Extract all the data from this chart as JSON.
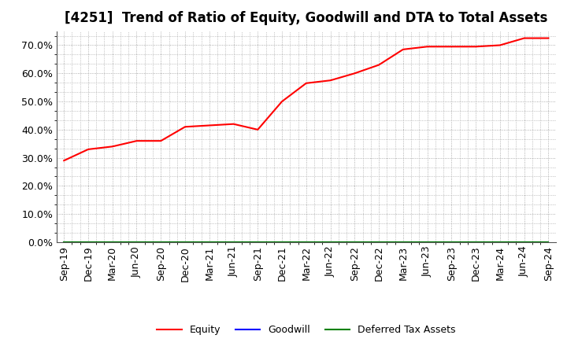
{
  "title": "[4251]  Trend of Ratio of Equity, Goodwill and DTA to Total Assets",
  "x_labels": [
    "Sep-19",
    "Dec-19",
    "Mar-20",
    "Jun-20",
    "Sep-20",
    "Dec-20",
    "Mar-21",
    "Jun-21",
    "Sep-21",
    "Dec-21",
    "Mar-22",
    "Jun-22",
    "Sep-22",
    "Dec-22",
    "Mar-23",
    "Jun-23",
    "Sep-23",
    "Dec-23",
    "Mar-24",
    "Jun-24",
    "Sep-24"
  ],
  "equity": [
    0.29,
    0.33,
    0.34,
    0.36,
    0.36,
    0.41,
    0.415,
    0.42,
    0.4,
    0.5,
    0.565,
    0.575,
    0.6,
    0.63,
    0.685,
    0.695,
    0.695,
    0.695,
    0.7,
    0.725,
    0.725
  ],
  "goodwill": [
    0.0,
    0.0,
    0.0,
    0.0,
    0.0,
    0.0,
    0.0,
    0.0,
    0.0,
    0.0,
    0.0,
    0.0,
    0.0,
    0.0,
    0.0,
    0.0,
    0.0,
    0.0,
    0.0,
    0.0,
    0.0
  ],
  "dta": [
    0.0,
    0.0,
    0.0,
    0.0,
    0.0,
    0.0,
    0.0,
    0.0,
    0.0,
    0.0,
    0.0,
    0.0,
    0.0,
    0.0,
    0.0,
    0.0,
    0.0,
    0.0,
    0.0,
    0.0,
    0.0
  ],
  "equity_color": "#ff0000",
  "goodwill_color": "#0000ff",
  "dta_color": "#008000",
  "ylim": [
    0.0,
    0.75
  ],
  "yticks": [
    0.0,
    0.1,
    0.2,
    0.3,
    0.4,
    0.5,
    0.6,
    0.7
  ],
  "background_color": "#ffffff",
  "grid_color": "#999999",
  "title_fontsize": 12,
  "tick_fontsize": 9,
  "legend_labels": [
    "Equity",
    "Goodwill",
    "Deferred Tax Assets"
  ]
}
